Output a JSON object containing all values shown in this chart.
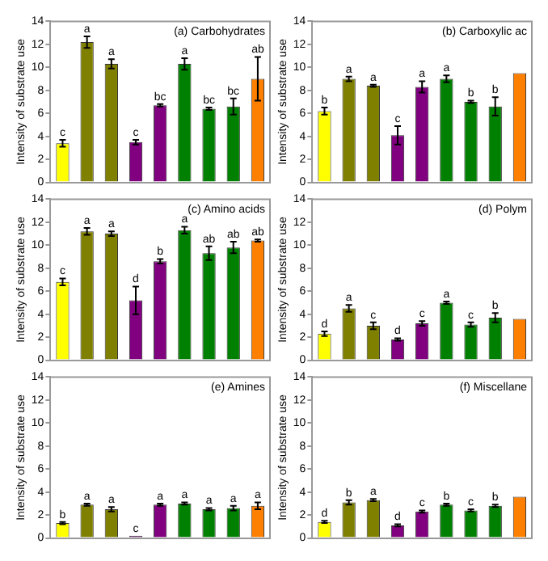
{
  "chart_data": [
    {
      "type": "bar",
      "title": "(a) Carbohydrates",
      "ylabel": "Intensity of substrate use",
      "categories": [
        null,
        null,
        null,
        null,
        null,
        null,
        null,
        null,
        null
      ],
      "values": [
        3.4,
        12.2,
        10.3,
        3.5,
        6.7,
        10.3,
        6.4,
        6.6,
        9.0
      ],
      "errors": [
        0.3,
        0.5,
        0.4,
        0.2,
        0.1,
        0.5,
        0.1,
        0.7,
        1.9
      ],
      "value_labels": [
        "c",
        "a",
        "a",
        "c",
        "bc",
        "a",
        "bc",
        "bc",
        "ab"
      ],
      "colors": [
        "#ffff00",
        "#808000",
        "#808000",
        "#800080",
        "#800080",
        "#008000",
        "#008000",
        "#008000",
        "#ff8000"
      ],
      "ylim": [
        0,
        14
      ],
      "yticks": [
        0,
        2,
        4,
        6,
        8,
        10,
        12,
        14
      ],
      "tick_labels": "y",
      "grid": false
    },
    {
      "type": "bar",
      "title": "(b) Carboxylic ac",
      "ylabel": "Intensity of substrate use",
      "categories": [
        null,
        null,
        null,
        null,
        null,
        null,
        null,
        null,
        null
      ],
      "values": [
        6.2,
        9.0,
        8.4,
        4.1,
        8.3,
        9.0,
        7.0,
        6.6,
        9.5
      ],
      "errors": [
        0.3,
        0.2,
        0.1,
        0.8,
        0.5,
        0.3,
        0.1,
        0.8,
        null
      ],
      "value_labels": [
        "b",
        "a",
        "a",
        "c",
        "a",
        "a",
        "b",
        "b",
        null
      ],
      "colors": [
        "#ffff00",
        "#808000",
        "#808000",
        "#800080",
        "#800080",
        "#008000",
        "#008000",
        "#008000",
        "#ff8000"
      ],
      "ylim": [
        0,
        14
      ],
      "yticks": [
        0,
        2,
        4,
        6,
        8,
        10,
        12,
        14
      ],
      "tick_labels": "y",
      "grid": false
    },
    {
      "type": "bar",
      "title": "(c) Amino acids",
      "ylabel": "Intensity of substrate use",
      "categories": [
        null,
        null,
        null,
        null,
        null,
        null,
        null,
        null,
        null
      ],
      "values": [
        6.8,
        11.2,
        11.0,
        5.2,
        8.6,
        11.3,
        9.3,
        9.8,
        10.4
      ],
      "errors": [
        0.3,
        0.3,
        0.2,
        1.2,
        0.2,
        0.3,
        0.6,
        0.5,
        0.1
      ],
      "value_labels": [
        "c",
        "a",
        "a",
        "d",
        "b",
        "a",
        "ab",
        "ab",
        "ab"
      ],
      "colors": [
        "#ffff00",
        "#808000",
        "#808000",
        "#800080",
        "#800080",
        "#008000",
        "#008000",
        "#008000",
        "#ff8000"
      ],
      "ylim": [
        0,
        14
      ],
      "yticks": [
        0,
        2,
        4,
        6,
        8,
        10,
        12,
        14
      ],
      "tick_labels": "y",
      "grid": false
    },
    {
      "type": "bar",
      "title": "(d) Polym",
      "ylabel": "Intensity of substrate use",
      "categories": [
        null,
        null,
        null,
        null,
        null,
        null,
        null,
        null,
        null
      ],
      "values": [
        2.3,
        4.5,
        3.0,
        1.8,
        3.2,
        5.0,
        3.1,
        3.7,
        3.6
      ],
      "errors": [
        0.2,
        0.3,
        0.3,
        0.1,
        0.2,
        0.1,
        0.2,
        0.4,
        null
      ],
      "value_labels": [
        "d",
        "a",
        "c",
        "d",
        "c",
        "a",
        "c",
        "b",
        null
      ],
      "colors": [
        "#ffff00",
        "#808000",
        "#808000",
        "#800080",
        "#800080",
        "#008000",
        "#008000",
        "#008000",
        "#ff8000"
      ],
      "ylim": [
        0,
        14
      ],
      "yticks": [
        0,
        2,
        4,
        6,
        8,
        10,
        12,
        14
      ],
      "tick_labels": "y",
      "grid": false
    },
    {
      "type": "bar",
      "title": "(e) Amines",
      "ylabel": "Intensity of substrate use",
      "categories": [
        null,
        null,
        null,
        null,
        null,
        null,
        null,
        null,
        null
      ],
      "values": [
        1.3,
        2.9,
        2.5,
        0.2,
        2.9,
        3.0,
        2.5,
        2.6,
        2.8
      ],
      "errors": [
        0.1,
        0.1,
        0.2,
        null,
        0.1,
        0.1,
        0.1,
        0.2,
        0.3
      ],
      "value_labels": [
        "b",
        "a",
        "a",
        "c",
        "a",
        "a",
        "a",
        "a",
        "a"
      ],
      "colors": [
        "#ffff00",
        "#808000",
        "#808000",
        "#800080",
        "#800080",
        "#008000",
        "#008000",
        "#008000",
        "#ff8000"
      ],
      "ylim": [
        0,
        14
      ],
      "yticks": [
        0,
        2,
        4,
        6,
        8,
        10,
        12,
        14
      ],
      "tick_labels": "y",
      "grid": false
    },
    {
      "type": "bar",
      "title": "(f) Miscellane",
      "ylabel": "Intensity of substrate use",
      "categories": [
        null,
        null,
        null,
        null,
        null,
        null,
        null,
        null,
        null
      ],
      "values": [
        1.4,
        3.1,
        3.3,
        1.1,
        2.3,
        2.9,
        2.4,
        2.8,
        3.6
      ],
      "errors": [
        0.1,
        0.2,
        0.1,
        0.1,
        0.1,
        0.1,
        0.1,
        0.1,
        null
      ],
      "value_labels": [
        "d",
        "b",
        "a",
        "d",
        "c",
        "b",
        "c",
        "b",
        null
      ],
      "colors": [
        "#ffff00",
        "#808000",
        "#808000",
        "#800080",
        "#800080",
        "#008000",
        "#008000",
        "#008000",
        "#ff8000"
      ],
      "ylim": [
        0,
        14
      ],
      "yticks": [
        0,
        2,
        4,
        6,
        8,
        10,
        12,
        14
      ],
      "tick_labels": "y",
      "grid": false
    }
  ]
}
